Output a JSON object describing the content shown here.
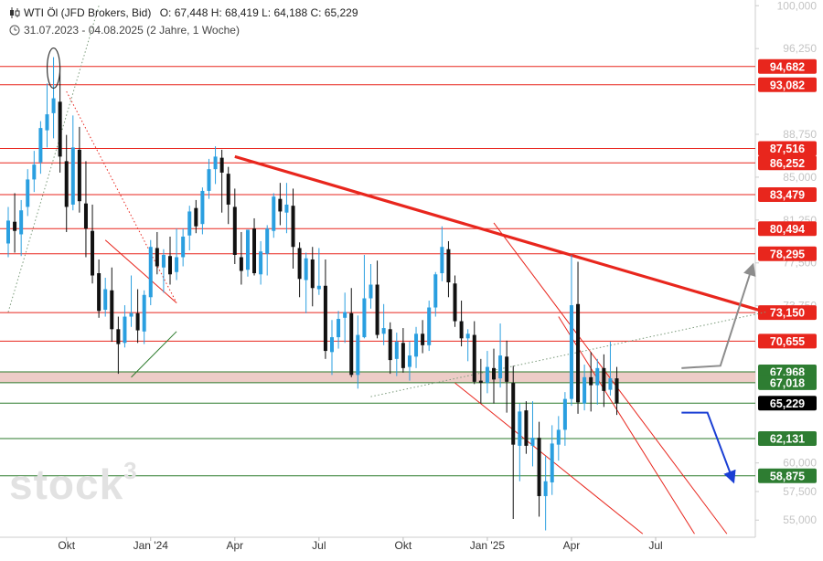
{
  "header": {
    "title": "WTI Öl (JFD Brokers, Bid)",
    "ohlc": "O: 67,448  H: 68,419  L: 64,188  C: 65,229",
    "period": "31.07.2023 - 04.08.2025  (2 Jahre, 1 Woche)"
  },
  "watermark": {
    "text": "stock",
    "superscript": "3"
  },
  "colors": {
    "bull": "#2a9fe0",
    "bear": "#111111",
    "resistance": "#e8261d",
    "support": "#2b7a2b",
    "zone_fill": "#eac3bd",
    "arrow_up": "#8c8c8c",
    "arrow_down": "#1a3fd4"
  },
  "chart_data": {
    "type": "candlestick",
    "ylim": [
      53.5,
      100.5
    ],
    "y_ticks": [
      "100,000",
      "96,250",
      "88,750",
      "85,000",
      "81,250",
      "77,500",
      "73,750",
      "60,000",
      "57,500",
      "55,000"
    ],
    "x_tick_labels": [
      "Okt",
      "Jan '24",
      "Apr",
      "Jul",
      "Okt",
      "Jan '25",
      "Apr",
      "Jul"
    ],
    "x_tick_weeks": [
      9,
      22,
      35,
      48,
      61,
      74,
      87,
      100
    ],
    "x_range_weeks": [
      0,
      118
    ],
    "horizontal_levels": [
      {
        "value": 94.682,
        "label": "94,682",
        "kind": "resistance"
      },
      {
        "value": 93.082,
        "label": "93,082",
        "kind": "resistance"
      },
      {
        "value": 87.516,
        "label": "87,516",
        "kind": "resistance"
      },
      {
        "value": 86.252,
        "label": "86,252",
        "kind": "resistance"
      },
      {
        "value": 83.479,
        "label": "83,479",
        "kind": "resistance"
      },
      {
        "value": 80.494,
        "label": "80,494",
        "kind": "resistance"
      },
      {
        "value": 78.295,
        "label": "78,295",
        "kind": "resistance"
      },
      {
        "value": 73.15,
        "label": "73,150",
        "kind": "resistance"
      },
      {
        "value": 70.655,
        "label": "70,655",
        "kind": "resistance"
      },
      {
        "value": 67.968,
        "label": "67,968",
        "kind": "support"
      },
      {
        "value": 67.018,
        "label": "67,018",
        "kind": "support"
      },
      {
        "value": 65.229,
        "label": "65,229",
        "kind": "current"
      },
      {
        "value": 62.131,
        "label": "62,131",
        "kind": "support"
      },
      {
        "value": 58.875,
        "label": "58,875",
        "kind": "support"
      }
    ],
    "support_zone": [
      67.018,
      67.968
    ],
    "trendlines": [
      {
        "name": "main-downtrend",
        "kind": "heavy-red",
        "points": [
          [
            35,
            86.8
          ],
          [
            117,
            73.2
          ]
        ]
      },
      {
        "name": "channel-upper",
        "kind": "thin-red",
        "points": [
          [
            75,
            81.0
          ],
          [
            111,
            53.8
          ]
        ]
      },
      {
        "name": "channel-lower",
        "kind": "thin-red",
        "points": [
          [
            69,
            67.0
          ],
          [
            98,
            53.8
          ]
        ]
      },
      {
        "name": "channel-mid",
        "kind": "thin-red",
        "points": [
          [
            85,
            72.8
          ],
          [
            106,
            53.8
          ]
        ]
      },
      {
        "name": "triangle-upper",
        "kind": "thin-red",
        "points": [
          [
            15,
            79.5
          ],
          [
            26,
            74.0
          ]
        ]
      },
      {
        "name": "triangle-lower",
        "kind": "thin-green",
        "points": [
          [
            19,
            67.5
          ],
          [
            26,
            71.5
          ]
        ]
      },
      {
        "name": "early-up-trend",
        "kind": "dotted-green",
        "points": [
          [
            0,
            73.2
          ],
          [
            14,
            100.0
          ]
        ]
      },
      {
        "name": "early-decline",
        "kind": "dotted-red",
        "points": [
          [
            9,
            92.5
          ],
          [
            26,
            74.0
          ]
        ]
      },
      {
        "name": "lower-uptrend",
        "kind": "dotted-green",
        "points": [
          [
            56,
            65.8
          ],
          [
            117,
            73.2
          ]
        ]
      }
    ],
    "arrows": [
      {
        "name": "bull-scenario-arrow",
        "color": "gray",
        "points": [
          [
            104,
            68.3
          ],
          [
            110,
            68.5
          ],
          [
            115,
            77.3
          ]
        ]
      },
      {
        "name": "bear-scenario-arrow",
        "color": "blue",
        "points": [
          [
            104,
            64.4
          ],
          [
            108,
            64.4
          ],
          [
            112,
            58.4
          ]
        ]
      }
    ],
    "ohlc": [
      [
        79.2,
        82.4,
        78.0,
        81.2
      ],
      [
        81.1,
        83.6,
        78.4,
        80.3
      ],
      [
        80.0,
        83.0,
        78.1,
        82.1
      ],
      [
        82.4,
        85.7,
        81.6,
        84.8
      ],
      [
        84.8,
        87.3,
        83.7,
        86.1
      ],
      [
        86.3,
        89.9,
        85.3,
        89.3
      ],
      [
        89.1,
        93.2,
        87.6,
        90.5
      ],
      [
        90.6,
        95.5,
        88.4,
        91.9
      ],
      [
        91.6,
        94.7,
        85.4,
        86.8
      ],
      [
        86.4,
        88.7,
        80.2,
        82.4
      ],
      [
        82.6,
        90.4,
        82.1,
        87.6
      ],
      [
        87.4,
        89.4,
        81.9,
        82.9
      ],
      [
        82.7,
        86.4,
        78.0,
        80.5
      ],
      [
        80.3,
        82.6,
        75.7,
        76.4
      ],
      [
        76.6,
        77.8,
        72.7,
        73.3
      ],
      [
        73.4,
        76.2,
        72.8,
        75.2
      ],
      [
        75.1,
        77.1,
        70.6,
        71.7
      ],
      [
        71.7,
        72.8,
        67.8,
        70.4
      ],
      [
        70.5,
        73.8,
        70.1,
        72.8
      ],
      [
        72.8,
        76.4,
        71.9,
        73.1
      ],
      [
        73.1,
        75.2,
        70.5,
        71.6
      ],
      [
        71.5,
        75.1,
        70.4,
        74.7
      ],
      [
        74.5,
        79.5,
        73.8,
        78.9
      ],
      [
        78.8,
        80.2,
        76.5,
        77.2
      ],
      [
        77.1,
        78.7,
        74.9,
        78.2
      ],
      [
        78.1,
        79.8,
        75.6,
        76.5
      ],
      [
        76.7,
        80.5,
        76.0,
        78.0
      ],
      [
        78.0,
        80.5,
        77.2,
        79.8
      ],
      [
        79.9,
        82.5,
        78.6,
        82.0
      ],
      [
        82.3,
        83.0,
        80.1,
        80.7
      ],
      [
        80.9,
        84.1,
        80.0,
        83.8
      ],
      [
        83.8,
        86.6,
        83.1,
        85.7
      ],
      [
        85.7,
        87.7,
        84.4,
        86.8
      ],
      [
        86.7,
        87.4,
        81.9,
        85.4
      ],
      [
        85.3,
        85.9,
        80.9,
        82.6
      ],
      [
        82.4,
        84.0,
        77.4,
        78.2
      ],
      [
        78.0,
        80.2,
        75.6,
        76.8
      ],
      [
        76.9,
        80.4,
        76.3,
        80.4
      ],
      [
        80.5,
        81.4,
        76.4,
        76.6
      ],
      [
        76.5,
        79.4,
        75.6,
        78.5
      ],
      [
        78.3,
        80.8,
        76.4,
        80.5
      ],
      [
        80.3,
        83.6,
        79.7,
        83.3
      ],
      [
        83.1,
        84.5,
        80.8,
        82.0
      ],
      [
        81.9,
        84.5,
        80.1,
        82.6
      ],
      [
        82.5,
        84.0,
        77.0,
        78.9
      ],
      [
        78.8,
        79.3,
        74.5,
        76.1
      ],
      [
        76.0,
        78.4,
        73.1,
        77.9
      ],
      [
        77.8,
        78.9,
        73.7,
        75.3
      ],
      [
        75.2,
        78.8,
        74.7,
        75.5
      ],
      [
        75.5,
        77.8,
        69.1,
        69.8
      ],
      [
        69.7,
        72.5,
        67.7,
        71.0
      ],
      [
        71.0,
        73.3,
        70.0,
        72.6
      ],
      [
        72.7,
        74.9,
        70.5,
        73.2
      ],
      [
        73.1,
        75.3,
        67.5,
        67.7
      ],
      [
        67.7,
        72.9,
        66.5,
        71.2
      ],
      [
        71.0,
        78.2,
        70.9,
        74.4
      ],
      [
        74.4,
        77.4,
        73.5,
        75.6
      ],
      [
        75.6,
        77.7,
        70.9,
        71.2
      ],
      [
        71.3,
        73.9,
        70.3,
        71.8
      ],
      [
        71.7,
        72.3,
        67.8,
        69.0
      ],
      [
        69.1,
        71.4,
        67.6,
        70.6
      ],
      [
        70.5,
        71.8,
        67.9,
        68.3
      ],
      [
        68.4,
        70.6,
        67.2,
        69.4
      ],
      [
        69.3,
        71.9,
        68.3,
        71.3
      ],
      [
        71.3,
        72.5,
        69.6,
        70.3
      ],
      [
        70.3,
        74.2,
        69.8,
        73.6
      ],
      [
        73.6,
        76.7,
        72.8,
        76.5
      ],
      [
        76.6,
        80.7,
        75.9,
        78.9
      ],
      [
        78.7,
        79.4,
        74.5,
        75.8
      ],
      [
        75.7,
        76.4,
        71.9,
        72.4
      ],
      [
        72.4,
        74.2,
        70.2,
        70.9
      ],
      [
        70.9,
        71.7,
        68.9,
        71.3
      ],
      [
        71.2,
        72.4,
        66.9,
        67.1
      ],
      [
        67.2,
        69.1,
        65.2,
        67.0
      ],
      [
        67.0,
        69.8,
        66.1,
        68.4
      ],
      [
        68.3,
        70.0,
        65.2,
        67.3
      ],
      [
        67.4,
        72.2,
        66.6,
        69.4
      ],
      [
        69.3,
        70.7,
        64.4,
        67.1
      ],
      [
        67.0,
        68.5,
        55.1,
        61.6
      ],
      [
        61.5,
        65.2,
        58.4,
        64.5
      ],
      [
        64.6,
        65.4,
        60.8,
        61.5
      ],
      [
        61.5,
        65.4,
        59.7,
        62.2
      ],
      [
        62.2,
        63.6,
        55.3,
        57.1
      ],
      [
        57.1,
        60.6,
        54.1,
        58.4
      ],
      [
        58.3,
        63.3,
        57.2,
        61.7
      ],
      [
        61.6,
        64.1,
        60.2,
        62.9
      ],
      [
        62.9,
        66.2,
        61.5,
        65.6
      ],
      [
        65.6,
        78.2,
        65.0,
        73.8
      ],
      [
        73.9,
        77.6,
        64.3,
        65.3
      ],
      [
        65.2,
        68.6,
        64.6,
        67.5
      ],
      [
        67.5,
        69.7,
        64.5,
        66.8
      ],
      [
        66.8,
        69.1,
        65.1,
        68.3
      ],
      [
        68.3,
        69.5,
        64.9,
        66.3
      ],
      [
        66.4,
        70.6,
        65.9,
        67.4
      ],
      [
        67.4,
        68.4,
        64.2,
        65.2
      ]
    ]
  }
}
